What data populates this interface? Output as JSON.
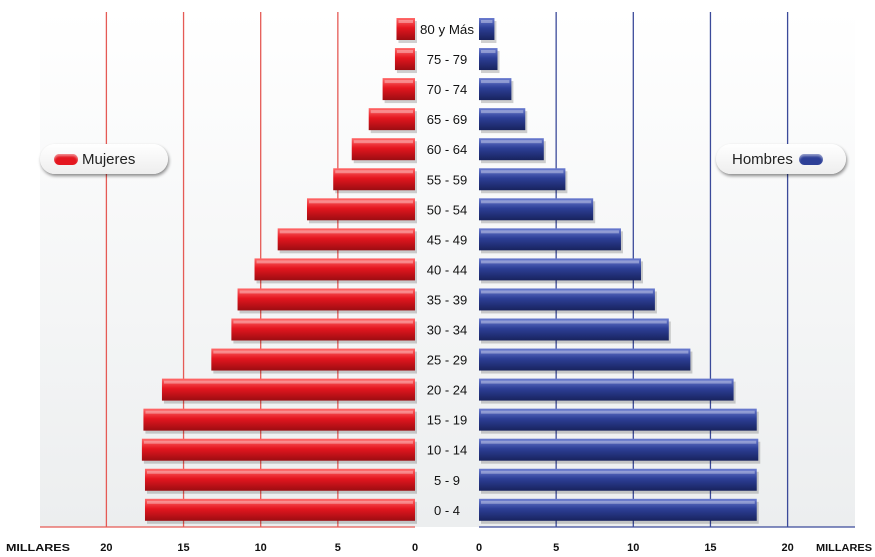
{
  "colors": {
    "women": "#e4161f",
    "women_dark": "#9c0d12",
    "men": "#2d3f97",
    "men_dark": "#18235e",
    "women_grid": "#e55a55",
    "men_grid": "#3b4a9a"
  },
  "legend": {
    "women": "Mujeres",
    "men": "Hombres"
  },
  "axis": {
    "unit_left": "MILLARES",
    "unit_right": "MILLARES",
    "ticks_left": [
      "20",
      "15",
      "10",
      "5",
      "0"
    ],
    "ticks_right": [
      "0",
      "5",
      "10",
      "15",
      "20"
    ]
  },
  "chart_data": {
    "type": "bar",
    "orientation": "horizontal-population-pyramid",
    "categories": [
      "80 y Más",
      "75 - 79",
      "70 - 74",
      "65 - 69",
      "60 - 64",
      "55 - 59",
      "50 - 54",
      "45 - 49",
      "40 - 44",
      "35 - 39",
      "30 - 34",
      "25 - 29",
      "20 - 24",
      "15 - 19",
      "10 - 14",
      "5 - 9",
      "0 - 4"
    ],
    "series": [
      {
        "name": "Mujeres",
        "side": "left",
        "values": [
          1.2,
          1.3,
          2.1,
          3.0,
          4.1,
          5.3,
          7.0,
          8.9,
          10.4,
          11.5,
          11.9,
          13.2,
          16.4,
          17.6,
          17.7,
          17.5,
          17.5
        ]
      },
      {
        "name": "Hombres",
        "side": "right",
        "values": [
          1.0,
          1.2,
          2.1,
          3.0,
          4.2,
          5.6,
          7.4,
          9.2,
          10.5,
          11.4,
          12.3,
          13.7,
          16.5,
          18.0,
          18.1,
          18.0,
          18.0
        ]
      }
    ],
    "xlim": [
      0,
      20
    ],
    "xlabel": "MILLARES",
    "grid": true
  }
}
